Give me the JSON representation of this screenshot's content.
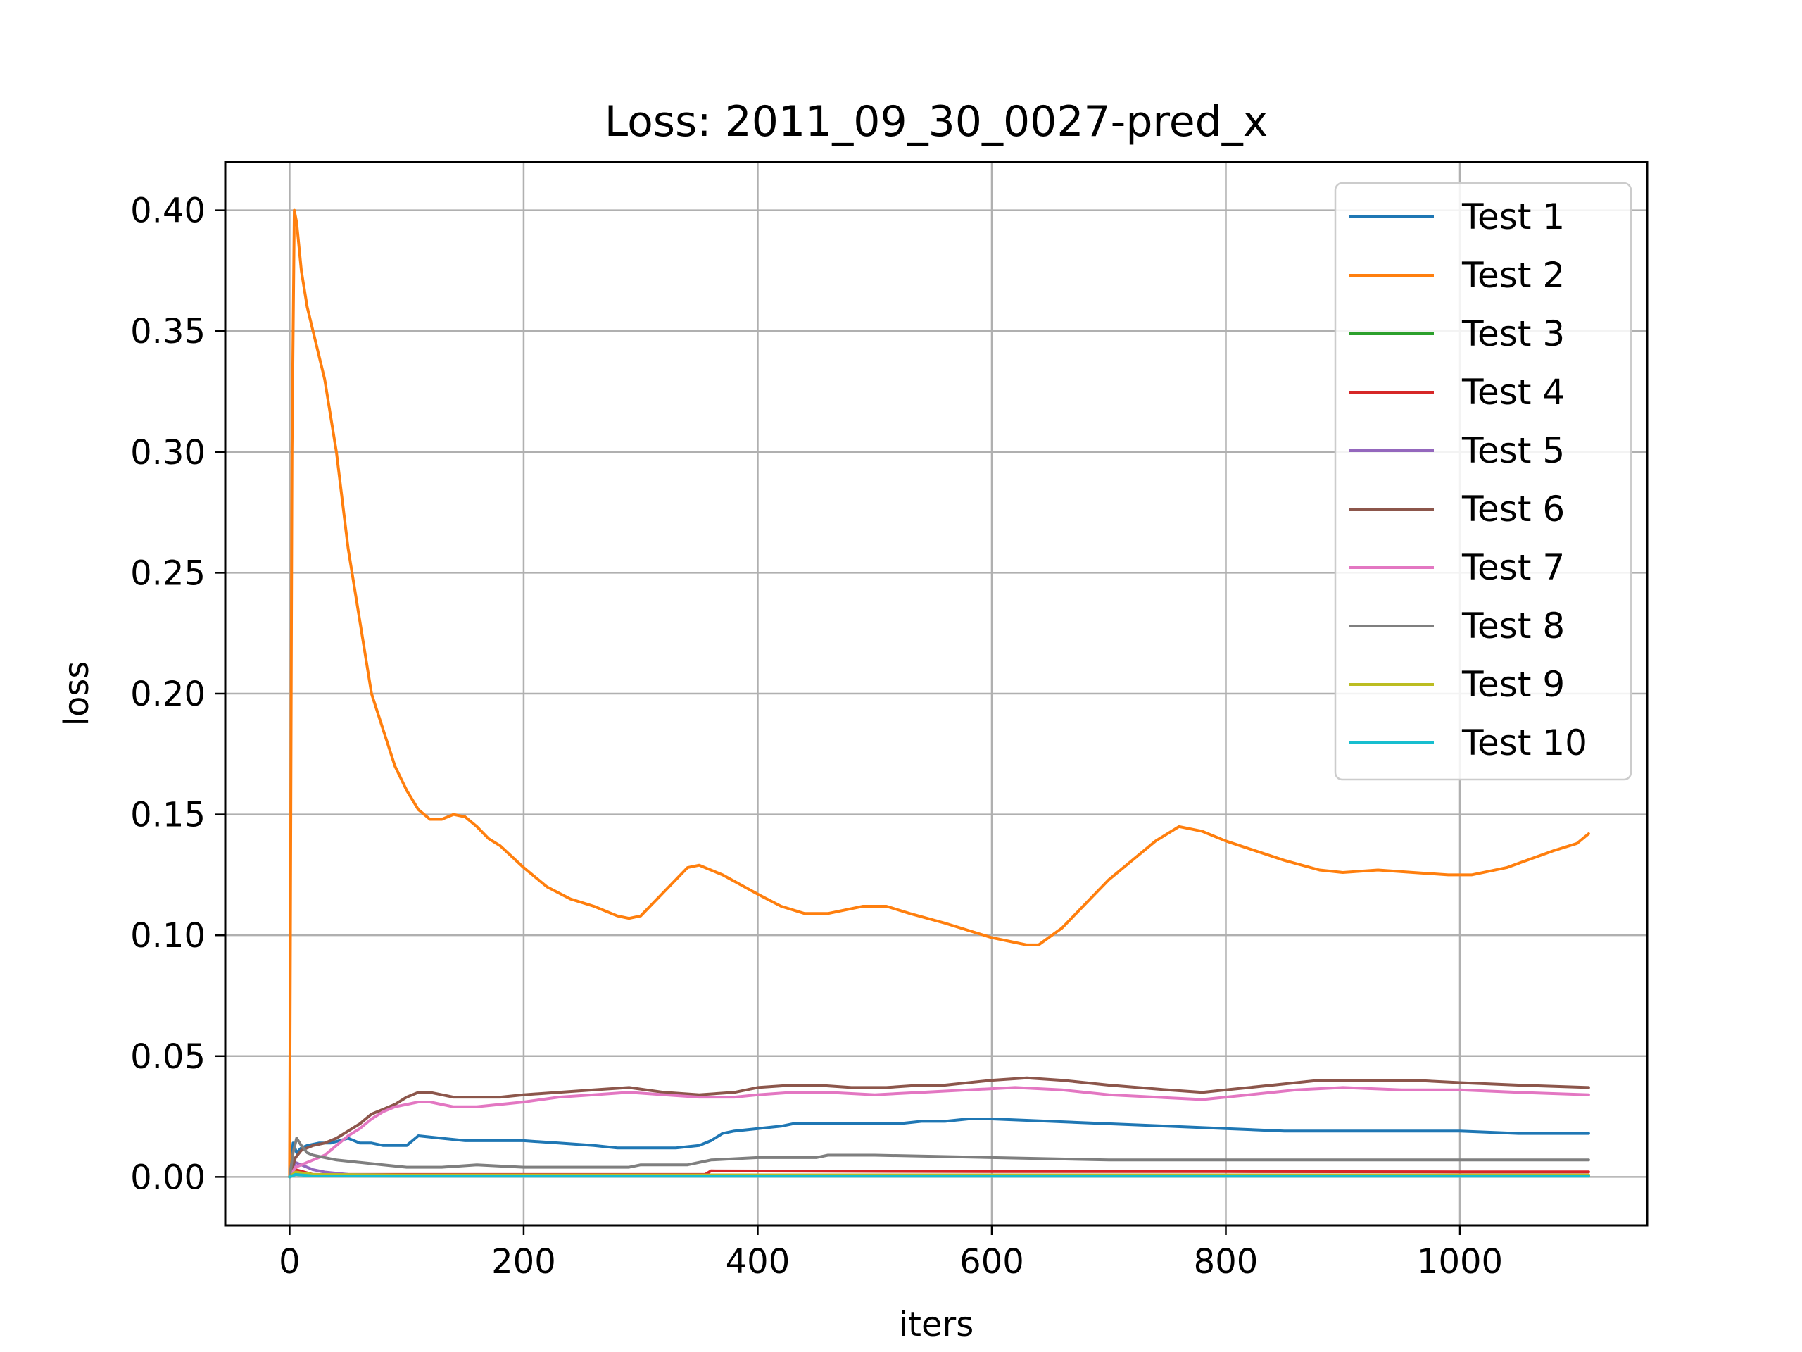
{
  "chart_data": {
    "type": "line",
    "title": "Loss: 2011_09_30_0027-pred_x",
    "xlabel": "iters",
    "ylabel": "loss",
    "xlim": [
      -55,
      1160
    ],
    "ylim": [
      -0.02,
      0.42
    ],
    "xticks": [
      0,
      200,
      400,
      600,
      800,
      1000
    ],
    "xtick_labels": [
      "0",
      "200",
      "400",
      "600",
      "800",
      "1000"
    ],
    "yticks": [
      0.0,
      0.05,
      0.1,
      0.15,
      0.2,
      0.25,
      0.3,
      0.35,
      0.4
    ],
    "ytick_labels": [
      "0.00",
      "0.05",
      "0.10",
      "0.15",
      "0.20",
      "0.25",
      "0.30",
      "0.35",
      "0.40"
    ],
    "grid": true,
    "legend_position": "top-right",
    "series": [
      {
        "name": "Test 1",
        "color": "#1f77b4",
        "x": [
          0,
          3,
          6,
          10,
          15,
          25,
          35,
          50,
          60,
          70,
          80,
          90,
          100,
          110,
          130,
          150,
          170,
          200,
          230,
          260,
          280,
          300,
          330,
          350,
          360,
          370,
          380,
          400,
          420,
          430,
          450,
          480,
          500,
          520,
          540,
          560,
          580,
          600,
          650,
          700,
          750,
          800,
          850,
          900,
          950,
          1000,
          1050,
          1110
        ],
        "y": [
          0.0,
          0.014,
          0.01,
          0.012,
          0.013,
          0.014,
          0.014,
          0.016,
          0.014,
          0.014,
          0.013,
          0.013,
          0.013,
          0.017,
          0.016,
          0.015,
          0.015,
          0.015,
          0.014,
          0.013,
          0.012,
          0.012,
          0.012,
          0.013,
          0.015,
          0.018,
          0.019,
          0.02,
          0.021,
          0.022,
          0.022,
          0.022,
          0.022,
          0.022,
          0.023,
          0.023,
          0.024,
          0.024,
          0.023,
          0.022,
          0.021,
          0.02,
          0.019,
          0.019,
          0.019,
          0.019,
          0.018,
          0.018
        ]
      },
      {
        "name": "Test 2",
        "color": "#ff7f0e",
        "x": [
          0,
          2,
          4,
          6,
          10,
          15,
          20,
          30,
          40,
          50,
          60,
          70,
          80,
          90,
          100,
          110,
          120,
          130,
          140,
          150,
          160,
          170,
          180,
          200,
          220,
          240,
          260,
          280,
          290,
          300,
          320,
          340,
          350,
          370,
          400,
          420,
          440,
          460,
          490,
          510,
          530,
          560,
          600,
          620,
          630,
          640,
          660,
          700,
          740,
          760,
          780,
          800,
          850,
          880,
          900,
          930,
          960,
          990,
          1010,
          1040,
          1080,
          1100,
          1110
        ],
        "y": [
          0.0,
          0.3,
          0.4,
          0.395,
          0.375,
          0.36,
          0.35,
          0.33,
          0.3,
          0.26,
          0.23,
          0.2,
          0.185,
          0.17,
          0.16,
          0.152,
          0.148,
          0.148,
          0.15,
          0.149,
          0.145,
          0.14,
          0.137,
          0.128,
          0.12,
          0.115,
          0.112,
          0.108,
          0.107,
          0.108,
          0.118,
          0.128,
          0.129,
          0.125,
          0.117,
          0.112,
          0.109,
          0.109,
          0.112,
          0.112,
          0.109,
          0.105,
          0.099,
          0.097,
          0.096,
          0.096,
          0.103,
          0.123,
          0.139,
          0.145,
          0.143,
          0.139,
          0.131,
          0.127,
          0.126,
          0.127,
          0.126,
          0.125,
          0.125,
          0.128,
          0.135,
          0.138,
          0.142
        ]
      },
      {
        "name": "Test 3",
        "color": "#2ca02c",
        "x": [
          0,
          5,
          20,
          100,
          400,
          800,
          1110
        ],
        "y": [
          0.0,
          0.001,
          0.0005,
          0.0004,
          0.0004,
          0.0004,
          0.0004
        ]
      },
      {
        "name": "Test 4",
        "color": "#d62728",
        "x": [
          0,
          5,
          20,
          100,
          300,
          355,
          360,
          600,
          800,
          1000,
          1110
        ],
        "y": [
          0.0,
          0.003,
          0.001,
          0.001,
          0.001,
          0.001,
          0.0025,
          0.0022,
          0.0022,
          0.0021,
          0.0021
        ]
      },
      {
        "name": "Test 5",
        "color": "#9467bd",
        "x": [
          0,
          5,
          10,
          15,
          20,
          30,
          50,
          100,
          400,
          1110
        ],
        "y": [
          0.0,
          0.006,
          0.005,
          0.004,
          0.003,
          0.002,
          0.001,
          0.0008,
          0.0008,
          0.0008
        ]
      },
      {
        "name": "Test 6",
        "color": "#8c564b",
        "x": [
          0,
          5,
          10,
          15,
          20,
          30,
          40,
          50,
          60,
          70,
          80,
          90,
          100,
          110,
          120,
          130,
          140,
          150,
          180,
          200,
          230,
          260,
          290,
          320,
          350,
          380,
          400,
          430,
          450,
          480,
          510,
          540,
          560,
          600,
          630,
          660,
          700,
          750,
          780,
          800,
          840,
          880,
          920,
          960,
          1000,
          1050,
          1110
        ],
        "y": [
          0.0,
          0.008,
          0.011,
          0.012,
          0.013,
          0.014,
          0.016,
          0.019,
          0.022,
          0.026,
          0.028,
          0.03,
          0.033,
          0.035,
          0.035,
          0.034,
          0.033,
          0.033,
          0.033,
          0.034,
          0.035,
          0.036,
          0.037,
          0.035,
          0.034,
          0.035,
          0.037,
          0.038,
          0.038,
          0.037,
          0.037,
          0.038,
          0.038,
          0.04,
          0.041,
          0.04,
          0.038,
          0.036,
          0.035,
          0.036,
          0.038,
          0.04,
          0.04,
          0.04,
          0.039,
          0.038,
          0.037
        ]
      },
      {
        "name": "Test 7",
        "color": "#e377c2",
        "x": [
          0,
          5,
          10,
          20,
          30,
          40,
          50,
          60,
          70,
          80,
          90,
          100,
          110,
          120,
          130,
          140,
          160,
          180,
          200,
          230,
          260,
          290,
          320,
          350,
          380,
          400,
          430,
          460,
          500,
          540,
          580,
          620,
          660,
          700,
          740,
          780,
          820,
          860,
          900,
          950,
          1000,
          1050,
          1110
        ],
        "y": [
          0.0,
          0.004,
          0.005,
          0.007,
          0.009,
          0.013,
          0.017,
          0.02,
          0.024,
          0.027,
          0.029,
          0.03,
          0.031,
          0.031,
          0.03,
          0.029,
          0.029,
          0.03,
          0.031,
          0.033,
          0.034,
          0.035,
          0.034,
          0.033,
          0.033,
          0.034,
          0.035,
          0.035,
          0.034,
          0.035,
          0.036,
          0.037,
          0.036,
          0.034,
          0.033,
          0.032,
          0.034,
          0.036,
          0.037,
          0.036,
          0.036,
          0.035,
          0.034
        ]
      },
      {
        "name": "Test 8",
        "color": "#7f7f7f",
        "x": [
          0,
          3,
          6,
          10,
          15,
          20,
          30,
          40,
          60,
          80,
          100,
          130,
          160,
          200,
          250,
          290,
          300,
          340,
          360,
          400,
          450,
          460,
          500,
          600,
          700,
          800,
          900,
          1000,
          1110
        ],
        "y": [
          0.0,
          0.01,
          0.016,
          0.013,
          0.01,
          0.009,
          0.008,
          0.007,
          0.006,
          0.005,
          0.004,
          0.004,
          0.005,
          0.004,
          0.004,
          0.004,
          0.005,
          0.005,
          0.007,
          0.008,
          0.008,
          0.009,
          0.009,
          0.008,
          0.007,
          0.007,
          0.007,
          0.007,
          0.007
        ]
      },
      {
        "name": "Test 9",
        "color": "#bcbd22",
        "x": [
          0,
          5,
          20,
          100,
          500,
          1110
        ],
        "y": [
          0.0,
          0.002,
          0.001,
          0.0008,
          0.0008,
          0.0008
        ]
      },
      {
        "name": "Test 10",
        "color": "#17becf",
        "x": [
          0,
          5,
          20,
          100,
          500,
          1110
        ],
        "y": [
          0.0,
          0.001,
          0.0004,
          0.0003,
          0.0003,
          0.0003
        ]
      }
    ]
  }
}
